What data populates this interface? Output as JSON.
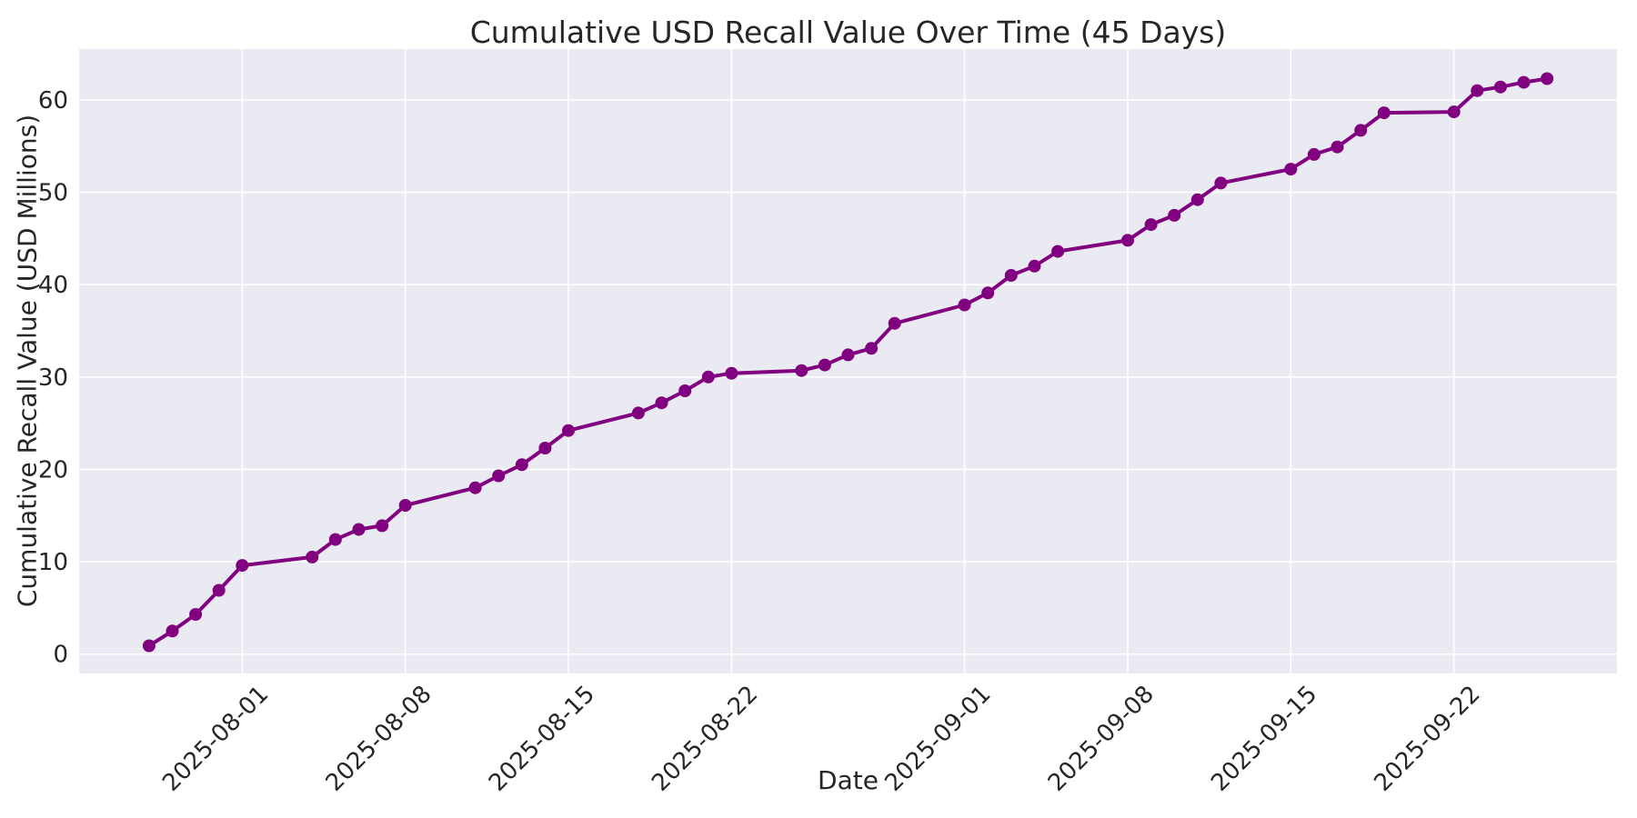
{
  "chart_data": {
    "type": "line",
    "title": "Cumulative USD Recall Value Over Time (45 Days)",
    "xlabel": "Date",
    "ylabel": "Cumulative Recall Value (USD Millions)",
    "x": [
      "2025-07-28",
      "2025-07-29",
      "2025-07-30",
      "2025-07-31",
      "2025-08-01",
      "2025-08-04",
      "2025-08-05",
      "2025-08-06",
      "2025-08-07",
      "2025-08-08",
      "2025-08-11",
      "2025-08-12",
      "2025-08-13",
      "2025-08-14",
      "2025-08-15",
      "2025-08-18",
      "2025-08-19",
      "2025-08-20",
      "2025-08-21",
      "2025-08-22",
      "2025-08-25",
      "2025-08-26",
      "2025-08-27",
      "2025-08-28",
      "2025-08-29",
      "2025-09-01",
      "2025-09-02",
      "2025-09-03",
      "2025-09-04",
      "2025-09-05",
      "2025-09-08",
      "2025-09-09",
      "2025-09-10",
      "2025-09-11",
      "2025-09-12",
      "2025-09-15",
      "2025-09-16",
      "2025-09-17",
      "2025-09-18",
      "2025-09-19",
      "2025-09-22",
      "2025-09-23",
      "2025-09-24",
      "2025-09-25",
      "2025-09-26"
    ],
    "y": [
      0.9,
      2.5,
      4.3,
      6.9,
      9.6,
      10.5,
      12.4,
      13.5,
      13.9,
      16.1,
      18.0,
      19.3,
      20.5,
      22.3,
      24.2,
      26.1,
      27.2,
      28.5,
      30.0,
      30.4,
      30.7,
      31.3,
      32.4,
      33.1,
      35.8,
      37.8,
      39.1,
      41.0,
      42.0,
      43.6,
      44.8,
      46.5,
      47.5,
      49.2,
      51.0,
      52.5,
      54.1,
      54.9,
      56.7,
      58.6,
      58.7,
      61.0,
      61.4,
      61.9,
      62.3
    ],
    "x_ticks": [
      "2025-08-01",
      "2025-08-08",
      "2025-08-15",
      "2025-08-22",
      "2025-09-01",
      "2025-09-08",
      "2025-09-15",
      "2025-09-22"
    ],
    "y_ticks": [
      0,
      10,
      20,
      30,
      40,
      50,
      60
    ],
    "xlim": [
      "2025-07-25",
      "2025-09-29"
    ],
    "ylim": [
      -2.1,
      65.5
    ],
    "grid": true,
    "legend_position": "none",
    "line_color": "#800080",
    "marker": "circle",
    "plot_background": "#eaeaf2",
    "grid_color": "#ffffff",
    "text_color": "#262626"
  }
}
